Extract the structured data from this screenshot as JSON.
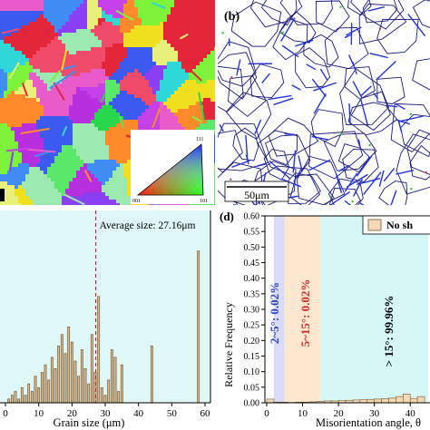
{
  "panel_a": {
    "ipf_key": {
      "corner_111": "111",
      "corner_001": "001",
      "corner_101": "101"
    },
    "colors": [
      "#e4263a",
      "#27d84a",
      "#3b5bf0",
      "#f1e020",
      "#c341e6",
      "#2fd7d7",
      "#ff8a2a",
      "#7cf23b",
      "#e85cc9",
      "#3f8ef5",
      "#9be8b0",
      "#b82fe0",
      "#f04b6b",
      "#5be76a",
      "#8a3ff0",
      "#e8f07a"
    ]
  },
  "panel_b": {
    "label": "(b)",
    "scale_bar": "50μm",
    "colors": {
      "boundary": "#1a1a80",
      "twin": "#2233dd",
      "low_angle": "#2cc22c",
      "mid_angle": "#d33030"
    }
  },
  "panel_c": {
    "annotation": "Average size: 27.16μm",
    "xlabel": "Grain size (μm)",
    "colors": {
      "bar_fill": "#d8b98f",
      "bar_edge": "#6b4a1f",
      "average_line": "#d12a2a",
      "background": "#e0f7f7"
    }
  },
  "panel_d": {
    "label": "(d)",
    "legend_label": "No sh",
    "xlabel": "Misorientation angle, θ",
    "ylabel": "Relative Frequency",
    "region_labels": {
      "low": "2~5°: 0.02%",
      "mid": "5~15°: 0.02%",
      "high": "> 15°: 99.96%"
    },
    "colors": {
      "low_band": "#d8dcfa",
      "mid_band": "#fde8cf",
      "high_band": "#d7f7f7",
      "low_text": "#2b3fcf",
      "mid_text": "#d12a2a",
      "high_text": "#000000",
      "bar_fill": "#f3d8b8",
      "bar_edge": "#7a5a2a"
    }
  },
  "chart_data": [
    {
      "type": "bar",
      "panel": "c",
      "title": "",
      "xlabel": "Grain size (μm)",
      "ylabel": "",
      "xlim": [
        0,
        60
      ],
      "x_ticks": [
        0,
        10,
        20,
        30,
        40,
        50,
        60
      ],
      "annotation": {
        "text": "Average size: 27.16μm",
        "x": 27.16
      },
      "x": [
        1,
        2,
        3,
        4,
        5,
        6,
        7,
        8,
        9,
        10,
        11,
        12,
        13,
        14,
        15,
        16,
        17,
        18,
        19,
        20,
        21,
        22,
        23,
        24,
        25,
        26,
        27,
        28,
        29,
        30,
        31,
        32,
        33,
        34,
        35,
        44,
        58
      ],
      "values": [
        1,
        2,
        3,
        1,
        4,
        2,
        5,
        3,
        7,
        4,
        8,
        10,
        6,
        12,
        9,
        15,
        18,
        13,
        20,
        16,
        11,
        7,
        14,
        9,
        5,
        18,
        8,
        28,
        4,
        2,
        6,
        14,
        12,
        3,
        10,
        15,
        40
      ]
    },
    {
      "type": "bar",
      "panel": "d",
      "title": "",
      "xlabel": "Misorientation angle, θ",
      "ylabel": "Relative Frequency",
      "xlim": [
        0,
        45
      ],
      "ylim": [
        0,
        0.6
      ],
      "x_ticks": [
        0,
        10,
        20,
        30,
        40
      ],
      "y_ticks": [
        0.0,
        0.05,
        0.1,
        0.15,
        0.2,
        0.25,
        0.3,
        0.35,
        0.4,
        0.45,
        0.5,
        0.55,
        0.6
      ],
      "x": [
        1,
        3,
        5,
        7,
        9,
        11,
        13,
        15,
        17,
        19,
        21,
        23,
        25,
        27,
        29,
        31,
        33,
        35,
        37,
        39,
        41,
        43
      ],
      "values": [
        0.012,
        0.002,
        0.002,
        0.001,
        0.002,
        0.002,
        0.003,
        0.004,
        0.006,
        0.006,
        0.007,
        0.008,
        0.009,
        0.01,
        0.011,
        0.012,
        0.013,
        0.015,
        0.02,
        0.028,
        0.014,
        0.02
      ]
    }
  ]
}
